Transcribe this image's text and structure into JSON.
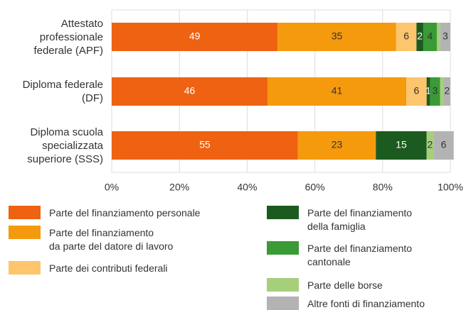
{
  "chart_data": {
    "type": "stacked-barh",
    "categories": [
      "Attestato\nprofessionale\nfederale (APF)",
      "Diploma federale\n(DF)",
      "Diploma scuola\nspecializzata\nsuperiore (SSS)"
    ],
    "series": [
      {
        "name": "Parte del finanziamento personale",
        "color": "#ee6211",
        "label_color": "#ffffff",
        "values": [
          49,
          46,
          55
        ],
        "value_labels": [
          "49",
          "46",
          "55"
        ]
      },
      {
        "name": "Parte del finanziamento\nda parte del datore di lavoro",
        "color": "#f59a0c",
        "label_color": "#333333",
        "values": [
          35,
          41,
          23
        ],
        "value_labels": [
          "35",
          "41",
          "23"
        ]
      },
      {
        "name": "Parte dei contributi federali",
        "color": "#fdc56d",
        "label_color": "#333333",
        "values": [
          6,
          6,
          0
        ],
        "value_labels": [
          "6",
          "6",
          null
        ]
      },
      {
        "name": "Parte del finanziamento\ndella famiglia",
        "color": "#1c5b1f",
        "label_color": "#ffffff",
        "values": [
          2,
          1,
          15
        ],
        "value_labels": [
          "2",
          "1",
          "15"
        ]
      },
      {
        "name": "Parte del finanziamento\ncantonale",
        "color": "#3a9a36",
        "label_color": "#333333",
        "values": [
          4,
          3,
          0
        ],
        "value_labels": [
          "4",
          "3",
          null
        ]
      },
      {
        "name": "Parte delle borse",
        "color": "#a6cf7c",
        "label_color": "#333333",
        "values": [
          1,
          1,
          2
        ],
        "value_labels": [
          null,
          null,
          "2"
        ]
      },
      {
        "name": "Altre fonti di finanziamento",
        "color": "#b3b3b3",
        "label_color": "#333333",
        "values": [
          3,
          2,
          6
        ],
        "value_labels": [
          "3",
          "2",
          "6"
        ]
      }
    ],
    "xlim": [
      0,
      100
    ],
    "xticks": [
      {
        "value": 0,
        "label": "0%"
      },
      {
        "value": 20,
        "label": "20%"
      },
      {
        "value": 40,
        "label": "40%"
      },
      {
        "value": 60,
        "label": "60%"
      },
      {
        "value": 80,
        "label": "80%"
      },
      {
        "value": 100,
        "label": "100%"
      }
    ],
    "grid": true
  }
}
